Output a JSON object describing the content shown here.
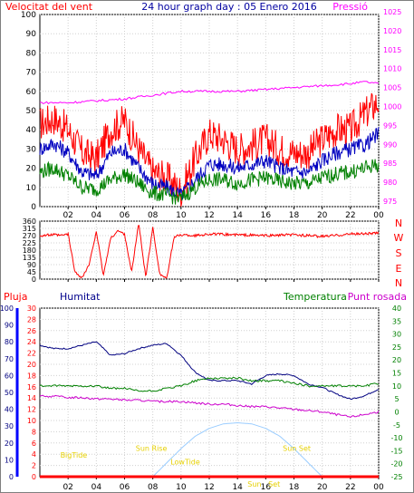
{
  "chart_data": [
    {
      "type": "line",
      "title": "24 hour graph day : 05 Enero 2016",
      "left_axis_label": "Velocitat del vent",
      "right_axis_label": "Pressió",
      "left_ylim": [
        0,
        100
      ],
      "left_ticks": [
        0,
        10,
        20,
        30,
        40,
        50,
        60,
        70,
        80,
        90,
        100
      ],
      "right_ylim": [
        975,
        1025
      ],
      "right_ticks": [
        975,
        980,
        985,
        990,
        995,
        1000,
        1005,
        1010,
        1015,
        1020,
        1025
      ],
      "x_tick_labels": [
        "02",
        "04",
        "06",
        "08",
        "10",
        "12",
        "14",
        "16",
        "18",
        "20",
        "22",
        "00"
      ],
      "grid": true,
      "series": [
        {
          "role": "gust",
          "color": "#ff0000",
          "axis": "left",
          "x": [
            0,
            1,
            2,
            3,
            4,
            5,
            6,
            7,
            8,
            9,
            10,
            11,
            12,
            13,
            14,
            15,
            16,
            17,
            18,
            19,
            20,
            21,
            22,
            23,
            24
          ],
          "y": [
            43,
            46,
            40,
            28,
            25,
            40,
            45,
            30,
            18,
            15,
            8,
            25,
            38,
            35,
            30,
            32,
            35,
            30,
            28,
            28,
            35,
            40,
            40,
            48,
            55
          ]
        },
        {
          "role": "average",
          "color": "#0000c0",
          "axis": "left",
          "x": [
            0,
            1,
            2,
            3,
            4,
            5,
            6,
            7,
            8,
            9,
            10,
            11,
            12,
            13,
            14,
            15,
            16,
            17,
            18,
            19,
            20,
            21,
            22,
            23,
            24
          ],
          "y": [
            30,
            33,
            28,
            18,
            16,
            28,
            30,
            20,
            12,
            10,
            6,
            14,
            22,
            22,
            20,
            22,
            24,
            20,
            18,
            18,
            24,
            28,
            30,
            32,
            38
          ]
        },
        {
          "role": "lowest",
          "color": "#008000",
          "axis": "left",
          "x": [
            0,
            1,
            2,
            3,
            4,
            5,
            6,
            7,
            8,
            9,
            10,
            11,
            12,
            13,
            14,
            15,
            16,
            17,
            18,
            19,
            20,
            21,
            22,
            23,
            24
          ],
          "y": [
            18,
            20,
            16,
            10,
            9,
            14,
            17,
            12,
            7,
            6,
            4,
            10,
            14,
            14,
            12,
            14,
            15,
            13,
            12,
            12,
            15,
            17,
            18,
            20,
            22
          ]
        },
        {
          "name": "Pressió",
          "color": "#ff00ff",
          "axis": "right",
          "x": [
            0,
            2,
            4,
            6,
            8,
            10,
            12,
            14,
            16,
            18,
            20,
            22,
            23,
            24
          ],
          "y": [
            1001,
            1001,
            1001.5,
            1002,
            1003,
            1004,
            1004,
            1004,
            1004.5,
            1005,
            1005.5,
            1006,
            1006.5,
            1006
          ]
        }
      ]
    },
    {
      "type": "line",
      "title": "",
      "ylim": [
        0,
        360
      ],
      "left_ticks": [
        0,
        45,
        90,
        135,
        180,
        225,
        270,
        315,
        360
      ],
      "compass_labels": [
        "N",
        "W",
        "S",
        "E",
        "N"
      ],
      "grid": true,
      "series": [
        {
          "name": "",
          "color": "#ff0000",
          "x": [
            0,
            1,
            1.5,
            2,
            2.5,
            3,
            3.5,
            4,
            4.5,
            5,
            5.5,
            6,
            6.5,
            7,
            7.5,
            8,
            8.5,
            9,
            9.5,
            10,
            11,
            12,
            14,
            16,
            18,
            20,
            22,
            24
          ],
          "y": [
            270,
            275,
            270,
            280,
            40,
            10,
            90,
            300,
            20,
            250,
            300,
            280,
            40,
            350,
            10,
            320,
            30,
            5,
            260,
            275,
            270,
            280,
            275,
            270,
            275,
            265,
            280,
            285
          ]
        }
      ]
    },
    {
      "type": "line",
      "title": "",
      "labels": {
        "rain": "Pluja",
        "humidity": "Humitat",
        "temperature": "Temperatura",
        "dewpoint": "Punt rosada"
      },
      "rain_ylim": [
        0,
        30
      ],
      "rain_ticks": [
        0,
        2,
        4,
        6,
        8,
        10,
        12,
        14,
        16,
        18,
        20,
        22,
        24,
        26,
        28,
        30
      ],
      "humidity_ylim": [
        0,
        100
      ],
      "humidity_ticks": [
        0,
        10,
        20,
        30,
        40,
        50,
        60,
        70,
        80,
        90,
        100
      ],
      "temperature_ylim": [
        -25,
        40
      ],
      "temperature_ticks": [
        -25,
        -20,
        -15,
        -10,
        -5,
        0,
        5,
        10,
        15,
        20,
        25,
        30,
        35,
        40
      ],
      "x_tick_labels": [
        "02",
        "04",
        "06",
        "08",
        "10",
        "12",
        "14",
        "16",
        "18",
        "20",
        "22",
        "00"
      ],
      "grid": true,
      "series": [
        {
          "name": "Humitat",
          "color": "#000080",
          "axis": "humidity",
          "x": [
            0,
            1,
            2,
            3,
            4,
            5,
            6,
            7,
            8,
            9,
            10,
            11,
            12,
            13,
            14,
            15,
            16,
            17,
            18,
            19,
            20,
            21,
            22,
            23,
            24
          ],
          "y": [
            78,
            76,
            76,
            78,
            80,
            72,
            73,
            76,
            78,
            79,
            72,
            62,
            57,
            57,
            57,
            55,
            60,
            61,
            60,
            55,
            53,
            49,
            46,
            48,
            52
          ]
        },
        {
          "name": "Temperatura",
          "color": "#008000",
          "axis": "temperature",
          "x": [
            0,
            1,
            2,
            3,
            4,
            5,
            6,
            7,
            8,
            9,
            10,
            11,
            12,
            13,
            14,
            15,
            16,
            17,
            18,
            19,
            20,
            21,
            22,
            23,
            24
          ],
          "y": [
            10,
            10,
            10,
            10,
            10,
            9,
            9,
            8,
            8,
            9,
            10,
            12,
            13,
            13,
            13,
            12,
            12,
            12,
            11,
            10,
            10,
            10,
            10,
            10,
            11
          ]
        },
        {
          "name": "Punt rosada",
          "color": "#cc00cc",
          "axis": "temperature",
          "x": [
            0,
            1,
            2,
            3,
            4,
            5,
            6,
            7,
            8,
            9,
            10,
            11,
            12,
            13,
            14,
            15,
            16,
            17,
            18,
            19,
            20,
            21,
            22,
            23,
            24
          ],
          "y": [
            6,
            6,
            5.5,
            5.5,
            5,
            5,
            4.5,
            4.5,
            4,
            4,
            4,
            3.5,
            3,
            3,
            2.5,
            2,
            2,
            1.5,
            1,
            0.5,
            0,
            -1,
            -2,
            -1,
            0
          ]
        },
        {
          "role": "solar",
          "color": "#99ccff",
          "axis": "rain",
          "x": [
            8,
            9,
            10,
            11,
            12,
            13,
            14,
            15,
            16,
            17,
            18,
            19,
            20
          ],
          "y": [
            0,
            2.5,
            5,
            7.2,
            8.6,
            9.4,
            9.6,
            9.4,
            8.6,
            7.2,
            5,
            2.5,
            0
          ]
        },
        {
          "role": "rain",
          "color": "#ff0000",
          "axis": "rain",
          "x": [
            0,
            24
          ],
          "y": [
            0,
            0
          ]
        }
      ],
      "annotations": [
        {
          "text": "BigTide",
          "x": 2.4,
          "y": 3.4
        },
        {
          "text": "Sun Rise",
          "x": 7.9,
          "y": 4.6
        },
        {
          "text": "LowTide",
          "x": 10.3,
          "y": 2.2
        },
        {
          "text": "Sun Set",
          "x": 18.2,
          "y": 4.6
        },
        {
          "text": "Sun",
          "x": 15.2,
          "y": -1.8
        },
        {
          "text": "Set",
          "x": 16.6,
          "y": -1.8
        }
      ]
    }
  ]
}
